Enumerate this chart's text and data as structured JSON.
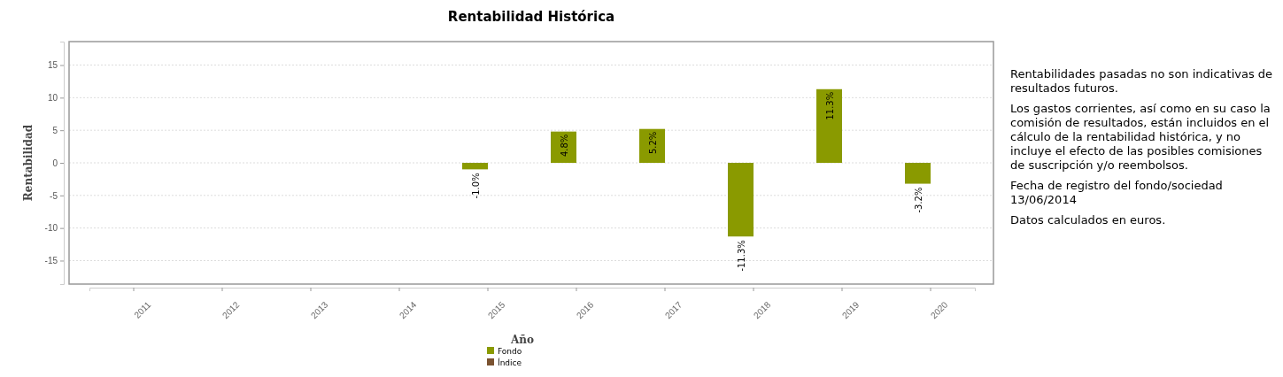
{
  "chart_data": {
    "type": "bar",
    "title": "Rentabilidad Histórica",
    "xlabel": "Año",
    "ylabel": "Rentabilidad",
    "categories": [
      "2011",
      "2012",
      "2013",
      "2014",
      "2015",
      "2016",
      "2017",
      "2018",
      "2019",
      "2020"
    ],
    "series": [
      {
        "name": "Fondo",
        "color": "#8a9a00",
        "values": [
          null,
          null,
          null,
          null,
          -1.0,
          4.8,
          5.2,
          -11.3,
          11.3,
          -3.2
        ],
        "value_labels": [
          null,
          null,
          null,
          null,
          "-1.0%",
          "4.8%",
          "5.2%",
          "-11.3%",
          "11.3%",
          "-3.2%"
        ]
      },
      {
        "name": "Índice",
        "color": "#7a5230",
        "values": [
          null,
          null,
          null,
          null,
          null,
          null,
          null,
          null,
          null,
          null
        ]
      }
    ],
    "ylim": [
      -18.6,
      18.6
    ],
    "yticks": [
      -15,
      -10,
      -5,
      0,
      5,
      10,
      15
    ],
    "grid": "y",
    "legend": "bottom",
    "annotations": [
      "Rentabilidades pasadas no son indicativas de resultados futuros.",
      "Los gastos corrientes, así como en su caso la comisión de resultados, están incluidos en el cálculo de la rentabilidad histórica, y no incluye el efecto de las posibles comisiones de suscripción y/o reembolsos.",
      "Fecha de registro del fondo/sociedad 13/06/2014",
      "Datos calculados en euros."
    ]
  }
}
